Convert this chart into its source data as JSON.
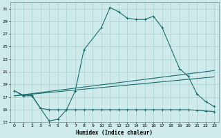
{
  "xlabel": "Humidex (Indice chaleur)",
  "background_color": "#ceeaea",
  "grid_color": "#aacfcf",
  "line_color": "#1a6b6b",
  "xlim": [
    -0.5,
    23.5
  ],
  "ylim": [
    13,
    32
  ],
  "yticks": [
    13,
    15,
    17,
    19,
    21,
    23,
    25,
    27,
    29,
    31
  ],
  "xticks": [
    0,
    1,
    2,
    3,
    4,
    5,
    6,
    7,
    8,
    9,
    10,
    11,
    12,
    13,
    14,
    15,
    16,
    17,
    18,
    19,
    20,
    21,
    22,
    23
  ],
  "line1_x": [
    0,
    1,
    2,
    3,
    4,
    5,
    6,
    7,
    8,
    10,
    11,
    12,
    13,
    14,
    15,
    16,
    17,
    19,
    20,
    21,
    22,
    23
  ],
  "line1_y": [
    18.0,
    17.2,
    17.2,
    15.2,
    13.2,
    13.5,
    15.0,
    18.0,
    24.5,
    28.0,
    31.2,
    30.5,
    29.5,
    29.3,
    29.3,
    29.8,
    28.0,
    21.5,
    20.3,
    17.5,
    16.3,
    15.5
  ],
  "line2_x": [
    0,
    1,
    2,
    3,
    4,
    5,
    6,
    7,
    8,
    9,
    10,
    11,
    12,
    13,
    14,
    15,
    16,
    17,
    18,
    19,
    20,
    21,
    22,
    23
  ],
  "line2_y": [
    18.0,
    17.3,
    17.3,
    15.2,
    15.0,
    15.0,
    15.0,
    15.0,
    15.0,
    15.0,
    15.0,
    15.0,
    15.0,
    15.0,
    15.0,
    15.0,
    15.0,
    15.0,
    15.0,
    15.0,
    15.0,
    14.9,
    14.8,
    14.7
  ],
  "line3_x": [
    0,
    23
  ],
  "line3_y": [
    17.2,
    21.2
  ],
  "line4_x": [
    0,
    23
  ],
  "line4_y": [
    17.2,
    20.2
  ]
}
